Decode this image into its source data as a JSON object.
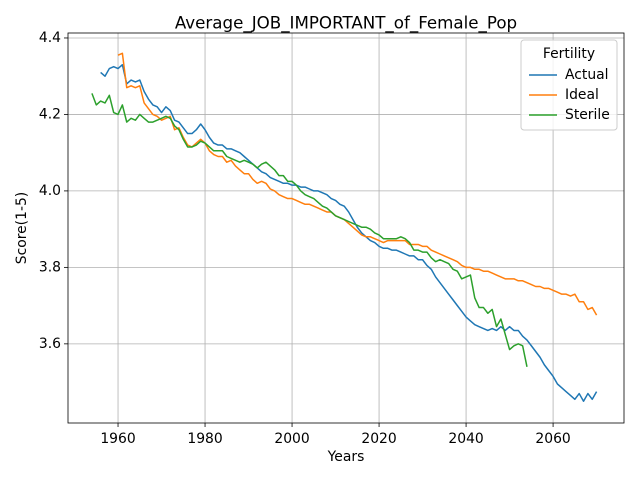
{
  "chart_data": {
    "type": "line",
    "title": "Average_JOB_IMPORTANT_of_Female_Pop",
    "x_label": "Years",
    "y_label": "Score(1-5)",
    "legend_title": "Fertility",
    "legend_position": "upper right",
    "grid": true,
    "xlim": [
      1948.5,
      2076.3
    ],
    "ylim": [
      3.393,
      4.413
    ],
    "xticks": [
      1960,
      1980,
      2000,
      2020,
      2040,
      2060
    ],
    "yticks": [
      3.6,
      3.8,
      {
        "value": 4,
        "label": "4.0"
      },
      4.2,
      4.4
    ],
    "x": [
      1954,
      1955,
      1956,
      1957,
      1958,
      1959,
      1960,
      1961,
      1962,
      1963,
      1964,
      1965,
      1966,
      1967,
      1968,
      1969,
      1970,
      1971,
      1972,
      1973,
      1974,
      1975,
      1976,
      1977,
      1978,
      1979,
      1980,
      1981,
      1982,
      1983,
      1984,
      1985,
      1986,
      1987,
      1988,
      1989,
      1990,
      1991,
      1992,
      1993,
      1994,
      1995,
      1996,
      1997,
      1998,
      1999,
      2000,
      2001,
      2002,
      2003,
      2004,
      2005,
      2006,
      2007,
      2008,
      2009,
      2010,
      2011,
      2012,
      2013,
      2014,
      2015,
      2016,
      2017,
      2018,
      2019,
      2020,
      2021,
      2022,
      2023,
      2024,
      2025,
      2026,
      2027,
      2028,
      2029,
      2030,
      2031,
      2032,
      2033,
      2034,
      2035,
      2036,
      2037,
      2038,
      2039,
      2040,
      2041,
      2042,
      2043,
      2044,
      2045,
      2046,
      2047,
      2048,
      2049,
      2050,
      2051,
      2052,
      2053,
      2054,
      2055,
      2056,
      2057,
      2058,
      2059,
      2060,
      2061,
      2062,
      2063,
      2064,
      2065,
      2066,
      2067,
      2068,
      2069,
      2070
    ],
    "series": [
      {
        "name": "Actual",
        "color": "#1f77b4",
        "values": [
          null,
          null,
          4.31,
          4.3,
          4.32,
          4.325,
          4.32,
          4.33,
          4.28,
          4.29,
          4.285,
          4.29,
          4.26,
          4.24,
          4.225,
          4.22,
          4.205,
          4.22,
          4.21,
          4.185,
          4.18,
          4.165,
          4.15,
          4.15,
          4.16,
          4.175,
          4.16,
          4.14,
          4.125,
          4.12,
          4.12,
          4.11,
          4.11,
          4.105,
          4.1,
          4.09,
          4.08,
          4.07,
          4.06,
          4.05,
          4.045,
          4.035,
          4.03,
          4.025,
          4.02,
          4.02,
          4.015,
          4.015,
          4.01,
          4.01,
          4.005,
          4.0,
          4.0,
          3.995,
          3.99,
          3.98,
          3.975,
          3.965,
          3.96,
          3.945,
          3.925,
          3.905,
          3.89,
          3.88,
          3.87,
          3.865,
          3.855,
          3.85,
          3.85,
          3.845,
          3.845,
          3.84,
          3.835,
          3.83,
          3.83,
          3.82,
          3.82,
          3.805,
          3.795,
          3.775,
          3.76,
          3.745,
          3.73,
          3.715,
          3.7,
          3.685,
          3.67,
          3.66,
          3.65,
          3.645,
          3.64,
          3.635,
          3.64,
          3.635,
          3.645,
          3.635,
          3.645,
          3.635,
          3.635,
          3.62,
          3.61,
          3.595,
          3.58,
          3.565,
          3.545,
          3.53,
          3.515,
          3.495,
          3.485,
          3.475,
          3.465,
          3.455,
          3.47,
          3.45,
          3.47,
          3.455,
          3.475
        ]
      },
      {
        "name": "Ideal",
        "color": "#ff7f0e",
        "values": [
          null,
          null,
          null,
          null,
          null,
          null,
          4.355,
          4.36,
          4.27,
          4.275,
          4.27,
          4.275,
          4.23,
          4.215,
          4.2,
          4.195,
          4.185,
          4.19,
          4.195,
          4.16,
          4.165,
          4.14,
          4.12,
          4.115,
          4.125,
          4.135,
          4.125,
          4.105,
          4.095,
          4.09,
          4.09,
          4.075,
          4.08,
          4.065,
          4.055,
          4.045,
          4.045,
          4.03,
          4.02,
          4.025,
          4.02,
          4.005,
          4.0,
          3.99,
          3.985,
          3.98,
          3.98,
          3.975,
          3.97,
          3.965,
          3.965,
          3.96,
          3.955,
          3.95,
          3.945,
          3.945,
          3.935,
          3.93,
          3.925,
          3.915,
          3.905,
          3.895,
          3.885,
          3.88,
          3.88,
          3.875,
          3.87,
          3.865,
          3.87,
          3.87,
          3.87,
          3.87,
          3.87,
          3.86,
          3.86,
          3.86,
          3.855,
          3.855,
          3.845,
          3.84,
          3.835,
          3.83,
          3.825,
          3.82,
          3.815,
          3.805,
          3.8,
          3.8,
          3.795,
          3.795,
          3.79,
          3.79,
          3.785,
          3.78,
          3.775,
          3.77,
          3.77,
          3.77,
          3.765,
          3.765,
          3.76,
          3.755,
          3.75,
          3.75,
          3.745,
          3.745,
          3.74,
          3.735,
          3.73,
          3.73,
          3.725,
          3.73,
          3.71,
          3.71,
          3.69,
          3.695,
          3.675
        ]
      },
      {
        "name": "Sterile",
        "color": "#2ca02c",
        "values": [
          4.255,
          4.225,
          4.235,
          4.23,
          4.25,
          4.205,
          4.2,
          4.225,
          4.18,
          4.19,
          4.185,
          4.2,
          4.19,
          4.18,
          4.18,
          4.185,
          4.19,
          4.195,
          4.19,
          4.17,
          4.16,
          4.135,
          4.115,
          4.115,
          4.12,
          4.13,
          4.125,
          4.115,
          4.105,
          4.105,
          4.105,
          4.09,
          4.085,
          4.08,
          4.075,
          4.08,
          4.075,
          4.07,
          4.06,
          4.07,
          4.075,
          4.065,
          4.055,
          4.04,
          4.04,
          4.025,
          4.025,
          4.015,
          4.0,
          3.99,
          3.985,
          3.98,
          3.97,
          3.96,
          3.955,
          3.945,
          3.935,
          3.93,
          3.925,
          3.92,
          3.915,
          3.91,
          3.905,
          3.905,
          3.9,
          3.89,
          3.885,
          3.875,
          3.875,
          3.875,
          3.875,
          3.88,
          3.875,
          3.865,
          3.845,
          3.845,
          3.84,
          3.84,
          3.825,
          3.815,
          3.82,
          3.815,
          3.81,
          3.795,
          3.79,
          3.77,
          3.775,
          3.78,
          3.72,
          3.695,
          3.695,
          3.68,
          3.69,
          3.645,
          3.665,
          3.625,
          3.585,
          3.595,
          3.6,
          3.595,
          3.54,
          null,
          null,
          null,
          null,
          null,
          null,
          null,
          null,
          null,
          null,
          null,
          null,
          null,
          null,
          null,
          null
        ]
      }
    ]
  }
}
